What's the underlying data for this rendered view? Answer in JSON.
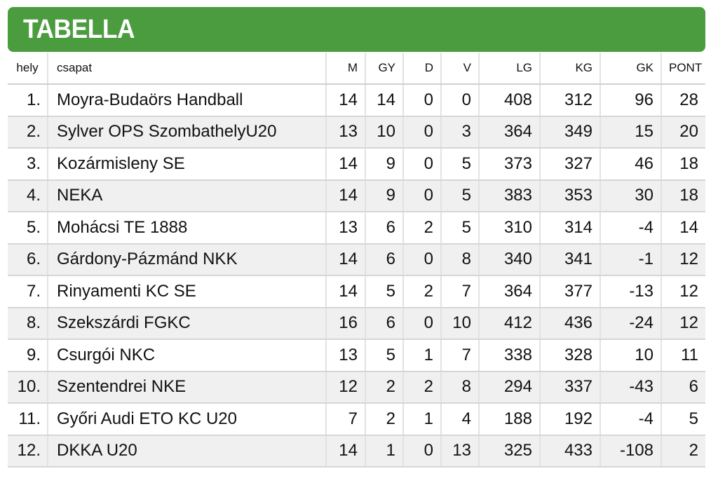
{
  "title": "TABELLA",
  "colors": {
    "header_bg": "#4a9c3e",
    "header_text": "#ffffff",
    "row_alt": "#f0f0f0"
  },
  "columns": [
    "hely",
    "csapat",
    "M",
    "GY",
    "D",
    "V",
    "LG",
    "KG",
    "GK",
    "PONT"
  ],
  "rows": [
    {
      "rank": "1.",
      "team": "Moyra-Budaörs Handball",
      "m": "14",
      "gy": "14",
      "d": "0",
      "v": "0",
      "lg": "408",
      "kg": "312",
      "gk": "96",
      "pont": "28"
    },
    {
      "rank": "2.",
      "team": "Sylver OPS SzombathelyU20",
      "m": "13",
      "gy": "10",
      "d": "0",
      "v": "3",
      "lg": "364",
      "kg": "349",
      "gk": "15",
      "pont": "20"
    },
    {
      "rank": "3.",
      "team": "Kozármisleny SE",
      "m": "14",
      "gy": "9",
      "d": "0",
      "v": "5",
      "lg": "373",
      "kg": "327",
      "gk": "46",
      "pont": "18"
    },
    {
      "rank": "4.",
      "team": "NEKA",
      "m": "14",
      "gy": "9",
      "d": "0",
      "v": "5",
      "lg": "383",
      "kg": "353",
      "gk": "30",
      "pont": "18"
    },
    {
      "rank": "5.",
      "team": "Mohácsi TE 1888",
      "m": "13",
      "gy": "6",
      "d": "2",
      "v": "5",
      "lg": "310",
      "kg": "314",
      "gk": "-4",
      "pont": "14"
    },
    {
      "rank": "6.",
      "team": "Gárdony-Pázmánd NKK",
      "m": "14",
      "gy": "6",
      "d": "0",
      "v": "8",
      "lg": "340",
      "kg": "341",
      "gk": "-1",
      "pont": "12"
    },
    {
      "rank": "7.",
      "team": "Rinyamenti KC SE",
      "m": "14",
      "gy": "5",
      "d": "2",
      "v": "7",
      "lg": "364",
      "kg": "377",
      "gk": "-13",
      "pont": "12"
    },
    {
      "rank": "8.",
      "team": "Szekszárdi FGKC",
      "m": "16",
      "gy": "6",
      "d": "0",
      "v": "10",
      "lg": "412",
      "kg": "436",
      "gk": "-24",
      "pont": "12"
    },
    {
      "rank": "9.",
      "team": "Csurgói NKC",
      "m": "13",
      "gy": "5",
      "d": "1",
      "v": "7",
      "lg": "338",
      "kg": "328",
      "gk": "10",
      "pont": "11"
    },
    {
      "rank": "10.",
      "team": "Szentendrei NKE",
      "m": "12",
      "gy": "2",
      "d": "2",
      "v": "8",
      "lg": "294",
      "kg": "337",
      "gk": "-43",
      "pont": "6"
    },
    {
      "rank": "11.",
      "team": "Győri Audi ETO KC U20",
      "m": "7",
      "gy": "2",
      "d": "1",
      "v": "4",
      "lg": "188",
      "kg": "192",
      "gk": "-4",
      "pont": "5"
    },
    {
      "rank": "12.",
      "team": "DKKA U20",
      "m": "14",
      "gy": "1",
      "d": "0",
      "v": "13",
      "lg": "325",
      "kg": "433",
      "gk": "-108",
      "pont": "2"
    }
  ]
}
